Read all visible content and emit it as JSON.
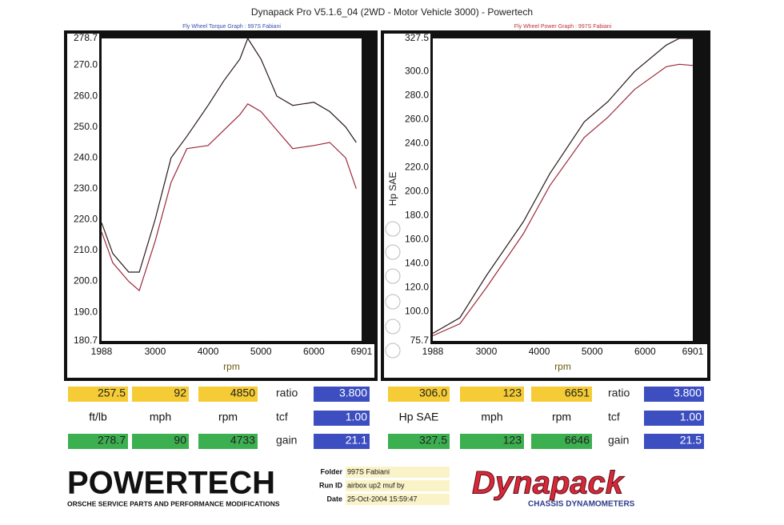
{
  "title": "Dynapack Pro V5.1.6_04 (2WD - Motor Vehicle 3000) - Powertech",
  "chart_data": [
    {
      "type": "line",
      "title": "Fly Wheel Torque Graph : 997S Fabiani",
      "title_color": "#3a4fb0",
      "xlabel": "rpm",
      "x": [
        1988,
        2200,
        2500,
        2700,
        3000,
        3300,
        3600,
        4000,
        4300,
        4600,
        4750,
        5000,
        5300,
        5600,
        6000,
        6300,
        6600,
        6800
      ],
      "series": [
        {
          "color": "#2a1a1a",
          "values": [
            219,
            209,
            203,
            203,
            220,
            240,
            247,
            257,
            265,
            272,
            278.7,
            272,
            260,
            257,
            258,
            255,
            250,
            245
          ]
        },
        {
          "color": "#9c2a3a",
          "values": [
            216,
            206,
            200,
            197,
            213,
            232,
            243,
            244,
            249,
            254,
            257.5,
            255,
            249,
            243,
            244,
            245,
            240,
            230
          ]
        }
      ],
      "xlim": [
        1988,
        6901
      ],
      "xticks": [
        1988,
        3000,
        4000,
        5000,
        6000,
        6901
      ],
      "ylim": [
        180.7,
        278.7
      ],
      "yticks": [
        180.7,
        {
          "value": 190,
          "label": "190.0"
        },
        {
          "value": 200,
          "label": "200.0"
        },
        {
          "value": 210,
          "label": "210.0"
        },
        {
          "value": 220,
          "label": "220.0"
        },
        {
          "value": 230,
          "label": "230.0"
        },
        {
          "value": 240,
          "label": "240.0"
        },
        {
          "value": 250,
          "label": "250.0"
        },
        {
          "value": 260,
          "label": "260.0"
        },
        {
          "value": 270,
          "label": "270.0"
        },
        278.7
      ]
    },
    {
      "type": "line",
      "title": "Fly Wheel Power Graph : 997S Fabiani",
      "title_color": "#c0303a",
      "xlabel": "rpm",
      "ylabel": "Hp SAE",
      "x": [
        1988,
        2500,
        3000,
        3700,
        4200,
        4850,
        5300,
        5800,
        6400,
        6646,
        6901
      ],
      "series": [
        {
          "color": "#2a1a1a",
          "values": [
            82,
            95,
            130,
            175,
            215,
            258,
            275,
            300,
            322,
            327.5,
            327.5
          ]
        },
        {
          "color": "#9c2a3a",
          "values": [
            80,
            90,
            120,
            165,
            205,
            245,
            262,
            285,
            304,
            306,
            305
          ]
        }
      ],
      "xlim": [
        1988,
        6901
      ],
      "xticks": [
        1988,
        3000,
        4000,
        5000,
        6000,
        6901
      ],
      "ylim": [
        75.7,
        327.5
      ],
      "yticks": [
        75.7,
        {
          "value": 100,
          "label": "100.0"
        },
        {
          "value": 120,
          "label": "120.0"
        },
        {
          "value": 140,
          "label": "140.0"
        },
        {
          "value": 160,
          "label": "160.0"
        },
        {
          "value": 180,
          "label": "180.0"
        },
        {
          "value": 200,
          "label": "200.0"
        },
        {
          "value": 220,
          "label": "220.0"
        },
        {
          "value": 240,
          "label": "240.0"
        },
        {
          "value": 260,
          "label": "260.0"
        },
        {
          "value": 280,
          "label": "280.0"
        },
        {
          "value": 300,
          "label": "300.0"
        },
        327.5
      ]
    }
  ],
  "readouts": [
    [
      [
        "257.5",
        "92",
        "4850",
        "ratio",
        "3.800"
      ],
      [
        "ft/lb",
        "mph",
        "rpm",
        "tcf",
        "1.00"
      ],
      [
        "278.7",
        "90",
        "4733",
        "gain",
        "21.1"
      ]
    ],
    [
      [
        "306.0",
        "123",
        "6651",
        "ratio",
        "3.800"
      ],
      [
        "Hp SAE",
        "mph",
        "rpm",
        "tcf",
        "1.00"
      ],
      [
        "327.5",
        "123",
        "6646",
        "gain",
        "21.5"
      ]
    ]
  ],
  "footer": {
    "brand": "POWERTECH",
    "tagline": "ORSCHE SERVICE PARTS AND PERFORMANCE MODIFICATIONS",
    "fields": [
      [
        "Folder",
        "997S Fabiani"
      ],
      [
        "Run ID",
        "airbox up2   muf by"
      ],
      [
        "Date",
        "25-Oct-2004   15:59:47"
      ]
    ],
    "logo": "Dynapack",
    "logo_sub": "CHASSIS   DYNAMOMETERS"
  }
}
